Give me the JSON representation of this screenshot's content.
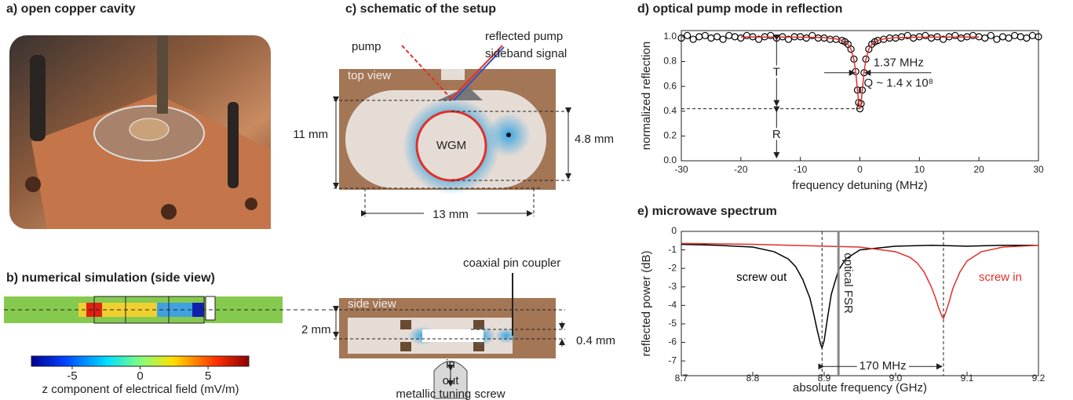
{
  "photo": {
    "title": "a) open copper cavity"
  },
  "simulation": {
    "title": "b) numerical simulation (side view)",
    "colorbar": {
      "label": "z component of electrical field (mV/m)",
      "lim": [
        -8,
        8
      ],
      "ticks": [
        -5,
        0,
        5
      ]
    }
  },
  "schematic": {
    "title": "c) schematic of the setup",
    "pump": "pump",
    "reflected": "reflected pump",
    "sideband": "sideband signal",
    "top_view": "top view",
    "wgm": "WGM",
    "height": "11 mm",
    "mode_size": "4.8 mm",
    "width": "13 mm",
    "side_view": "side view",
    "coupler": "coaxial pin coupler",
    "thickness": "2 mm",
    "gap": "0.4 mm",
    "screw_in": "in",
    "screw_out": "out",
    "screw": "metallic tuning screw"
  },
  "chart_data": [
    {
      "type": "line",
      "title": "d) optical pump mode in reflection",
      "xlabel": "frequency detuning (MHz)",
      "ylabel": "normalized reflection",
      "xlim": [
        -30,
        30
      ],
      "ylim": [
        0,
        1.05
      ],
      "xticks": [
        -30,
        -20,
        -10,
        0,
        10,
        20,
        30
      ],
      "yticks": [
        {
          "value": 0,
          "label": "0.0"
        },
        {
          "value": 0.2,
          "label": "0.2"
        },
        {
          "value": 0.4,
          "label": "0.4"
        },
        {
          "value": 0.6,
          "label": "0.6"
        },
        {
          "value": 0.8,
          "label": "0.8"
        },
        {
          "value": 1,
          "label": "1.0"
        }
      ],
      "series": [
        {
          "mode": "markers",
          "color": "#000000",
          "x": [
            -30,
            -29,
            -28,
            -27,
            -26,
            -25,
            -24,
            -23,
            -22,
            -21,
            -20,
            -19,
            -18,
            -17,
            -16,
            -15,
            -14,
            -13,
            -12,
            -11,
            -10,
            -9,
            -8,
            -7,
            -6,
            -5,
            -4,
            -3,
            -2.5,
            -2,
            -1.5,
            -1,
            -0.7,
            -0.4,
            -0.2,
            0,
            0.2,
            0.4,
            0.7,
            1,
            1.5,
            2,
            2.5,
            3,
            4,
            5,
            6,
            7,
            8,
            9,
            10,
            11,
            12,
            13,
            14,
            15,
            16,
            17,
            18,
            19,
            20,
            21,
            22,
            23,
            24,
            25,
            26,
            27,
            28,
            29,
            30
          ],
          "values": [
            0.99,
            1.01,
            0.98,
            1.0,
            1.01,
            0.99,
            1.0,
            0.98,
            1.01,
            1.0,
            0.99,
            1.01,
            1.0,
            0.98,
            1.0,
            1.01,
            0.99,
            1.0,
            0.98,
            1.0,
            1.0,
            0.99,
            1.01,
            0.99,
            0.99,
            0.98,
            0.98,
            0.97,
            0.96,
            0.94,
            0.9,
            0.82,
            0.72,
            0.57,
            0.47,
            0.42,
            0.46,
            0.57,
            0.71,
            0.82,
            0.9,
            0.94,
            0.96,
            0.97,
            0.98,
            0.99,
            0.99,
            1.0,
            1.01,
            0.99,
            1.0,
            1.01,
            0.99,
            1.0,
            0.98,
            1.0,
            1.01,
            0.99,
            1.0,
            1.01,
            1.0,
            0.99,
            1.01,
            0.98,
            1.0,
            0.99,
            1.01,
            1.0,
            0.99,
            1.01,
            1.0
          ]
        },
        {
          "mode": "line",
          "color": "#e0302a",
          "x": [
            -20,
            -10,
            -6,
            -4,
            -3,
            -2,
            -1.5,
            -1,
            -0.7,
            -0.4,
            -0.2,
            0,
            0.2,
            0.4,
            0.7,
            1,
            1.5,
            2,
            3,
            4,
            6,
            10,
            20
          ],
          "values": [
            0.999,
            0.997,
            0.993,
            0.983,
            0.971,
            0.939,
            0.9,
            0.815,
            0.716,
            0.567,
            0.465,
            0.42,
            0.465,
            0.567,
            0.716,
            0.815,
            0.9,
            0.939,
            0.971,
            0.983,
            0.993,
            0.997,
            0.999
          ]
        }
      ],
      "annotations": {
        "linewidth": "1.37 MHz",
        "q": "Q ~ 1.4 x 10⁸",
        "t": "T",
        "r": "R"
      }
    },
    {
      "type": "line",
      "title": "e) microwave spectrum",
      "xlabel": "absolute frequency (GHz)",
      "ylabel": "reflected power (dB)",
      "xlim": [
        8.7,
        9.2
      ],
      "ylim": [
        -7.8,
        0
      ],
      "xticks": [
        8.7,
        8.8,
        8.9,
        {
          "value": 9,
          "label": "9.0"
        },
        9.1,
        9.2
      ],
      "yticks": [
        0,
        -1,
        -2,
        -3,
        -4,
        -5,
        -6,
        -7
      ],
      "series": [
        {
          "name": "screw out",
          "color": "#000000",
          "x": [
            8.7,
            8.75,
            8.8,
            8.83,
            8.85,
            8.86,
            8.87,
            8.88,
            8.885,
            8.89,
            8.895,
            8.897,
            8.9,
            8.905,
            8.91,
            8.92,
            8.93,
            8.95,
            9.0,
            9.05,
            9.1,
            9.15,
            9.2
          ],
          "values": [
            -0.7,
            -0.75,
            -0.85,
            -1.1,
            -1.5,
            -1.9,
            -2.6,
            -3.6,
            -4.4,
            -5.3,
            -6.1,
            -6.3,
            -5.9,
            -4.6,
            -3.4,
            -2.1,
            -1.5,
            -1.0,
            -0.8,
            -0.75,
            -0.8,
            -0.75,
            -0.75
          ]
        },
        {
          "name": "screw in",
          "color": "#e0302a",
          "x": [
            8.7,
            8.8,
            8.9,
            8.95,
            9.0,
            9.02,
            9.03,
            9.04,
            9.05,
            9.055,
            9.06,
            9.065,
            9.067,
            9.07,
            9.075,
            9.08,
            9.09,
            9.1,
            9.12,
            9.15,
            9.2
          ],
          "values": [
            -0.65,
            -0.7,
            -0.8,
            -0.85,
            -1.1,
            -1.4,
            -1.7,
            -2.2,
            -3.0,
            -3.5,
            -4.1,
            -4.6,
            -4.7,
            -4.4,
            -3.8,
            -3.1,
            -2.2,
            -1.6,
            -1.1,
            -0.85,
            -0.75
          ]
        }
      ],
      "annotations": {
        "fsr": {
          "text": "optical FSR",
          "x": 8.92
        },
        "spacing": "170 MHz"
      }
    }
  ]
}
